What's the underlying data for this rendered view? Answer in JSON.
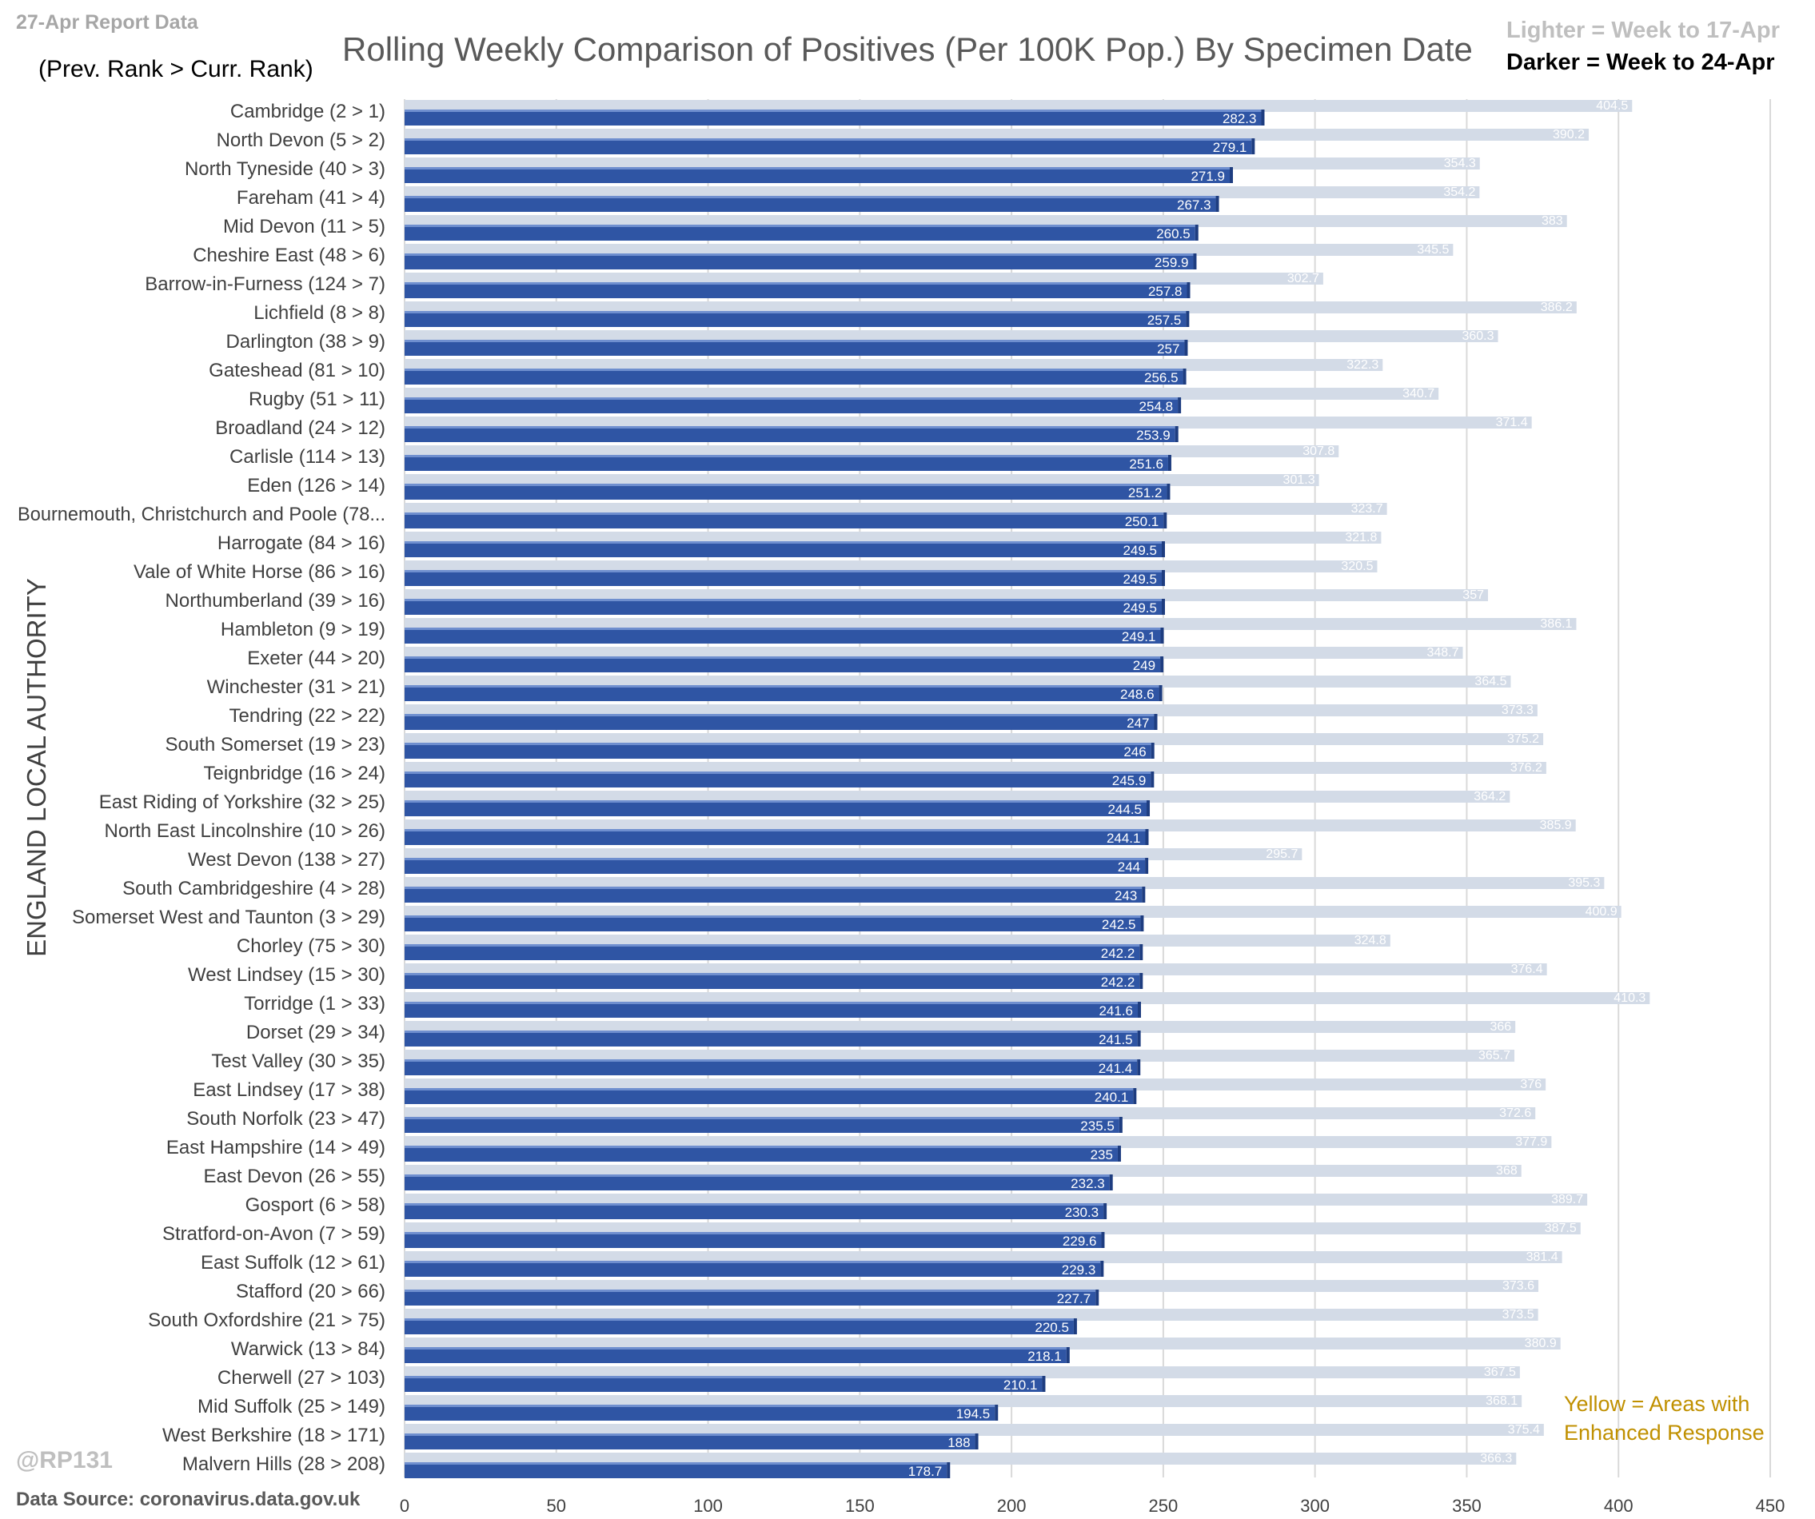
{
  "header": {
    "report_label": "27-Apr Report Data",
    "rank_note": "(Prev. Rank > Curr. Rank)",
    "title": "Rolling Weekly Comparison of Positives  (Per 100K Pop.) By Specimen Date",
    "legend_lighter": "Lighter =  Week to 17-Apr",
    "legend_darker": "Darker =  Week to 24-Apr"
  },
  "footer": {
    "yellow_note": "Yellow = Areas with Enhanced Response",
    "handle": "@RP131",
    "source": "Data Source: coronavirus.data.gov.uk"
  },
  "colors": {
    "current": "#2f55a4",
    "previous": "#d3dbe7",
    "gridline": "#d9d9d9",
    "yellow_note": "#c09000"
  },
  "chart_data": {
    "type": "bar",
    "orientation": "horizontal",
    "title": "Rolling Weekly Comparison of Positives  (Per 100K Pop.) By Specimen Date",
    "ylabel": "ENGLAND LOCAL AUTHORITY",
    "xlabel": "",
    "xlim": [
      0,
      450
    ],
    "xticks": [
      0,
      50,
      100,
      150,
      200,
      250,
      300,
      350,
      400,
      450
    ],
    "grid": true,
    "legend": "top-right",
    "categories": [
      "Cambridge (2 > 1)",
      "North Devon (5 > 2)",
      "North Tyneside (40 > 3)",
      "Fareham (41 > 4)",
      "Mid Devon (11 > 5)",
      "Cheshire East (48 > 6)",
      "Barrow-in-Furness (124 > 7)",
      "Lichfield (8 > 8)",
      "Darlington (38 > 9)",
      "Gateshead (81 > 10)",
      "Rugby (51 > 11)",
      "Broadland (24 > 12)",
      "Carlisle (114 > 13)",
      "Eden (126 > 14)",
      "Bournemouth, Christchurch and Poole (78...",
      "Harrogate (84 > 16)",
      "Vale of White Horse (86 > 16)",
      "Northumberland (39 > 16)",
      "Hambleton (9 > 19)",
      "Exeter (44 > 20)",
      "Winchester (31 > 21)",
      "Tendring (22 > 22)",
      "South Somerset (19 > 23)",
      "Teignbridge (16 > 24)",
      "East Riding of Yorkshire (32 > 25)",
      "North East Lincolnshire (10 > 26)",
      "West Devon (138 > 27)",
      "South Cambridgeshire (4 > 28)",
      "Somerset West and Taunton (3 > 29)",
      "Chorley (75 > 30)",
      "West Lindsey (15 > 30)",
      "Torridge (1 > 33)",
      "Dorset (29 > 34)",
      "Test Valley (30 > 35)",
      "East Lindsey (17 > 38)",
      "South Norfolk (23 > 47)",
      "East Hampshire (14 > 49)",
      "East Devon (26 > 55)",
      "Gosport (6 > 58)",
      "Stratford-on-Avon (7 > 59)",
      "East Suffolk (12 > 61)",
      "Stafford (20 > 66)",
      "South Oxfordshire (21 > 75)",
      "Warwick (13 > 84)",
      "Cherwell (27 > 103)",
      "Mid Suffolk (25 > 149)",
      "West Berkshire (18 > 171)",
      "Malvern Hills (28 > 208)"
    ],
    "series": [
      {
        "name": "Week to 17-Apr",
        "values": [
          404.5,
          390.2,
          354.3,
          354.2,
          383,
          345.5,
          302.7,
          386.2,
          360.3,
          322.3,
          340.7,
          371.4,
          307.8,
          301.3,
          323.7,
          321.8,
          320.5,
          357,
          386.1,
          348.7,
          364.5,
          373.3,
          375.2,
          376.2,
          364.2,
          385.9,
          295.7,
          395.3,
          400.9,
          324.8,
          376.4,
          410.3,
          366,
          365.7,
          376,
          372.6,
          377.9,
          368,
          389.7,
          387.5,
          381.4,
          373.6,
          373.5,
          380.9,
          367.5,
          368.1,
          375.4,
          366.3
        ]
      },
      {
        "name": "Week to 24-Apr",
        "values": [
          282.3,
          279.1,
          271.9,
          267.3,
          260.5,
          259.9,
          257.8,
          257.5,
          257,
          256.5,
          254.8,
          253.9,
          251.6,
          251.2,
          250.1,
          249.5,
          249.5,
          249.5,
          249.1,
          249,
          248.6,
          247,
          246,
          245.9,
          244.5,
          244.1,
          244,
          243,
          242.5,
          242.2,
          242.2,
          241.6,
          241.5,
          241.4,
          240.1,
          235.5,
          235,
          232.3,
          230.3,
          229.6,
          229.3,
          227.7,
          220.5,
          218.1,
          210.1,
          194.5,
          188,
          178.7
        ]
      }
    ]
  }
}
